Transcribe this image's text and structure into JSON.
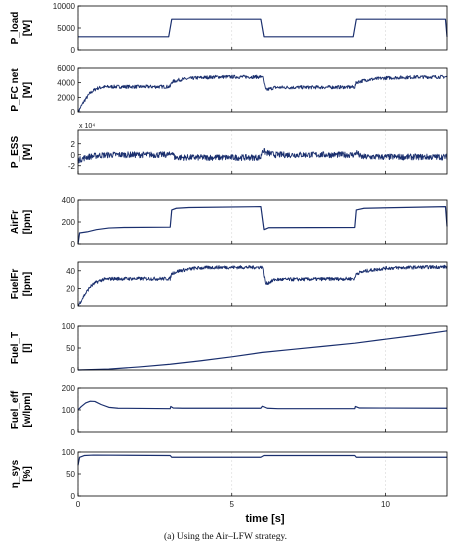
{
  "chart_data": {
    "type": "line",
    "caption": "(a) Using the Air–LFW strategy.",
    "xlabel": "time [s]",
    "xlim": [
      0,
      12
    ],
    "xticks": [
      0,
      5,
      10
    ],
    "line_color": "#1a2f6e",
    "panels": [
      {
        "ylabel": [
          "P_load",
          "[W]"
        ],
        "ylim": [
          0,
          10000
        ],
        "yticks": [
          0,
          5000,
          10000
        ],
        "exponent": "",
        "noise": 0,
        "points": [
          [
            0,
            3000
          ],
          [
            2.95,
            3000
          ],
          [
            3.05,
            7000
          ],
          [
            5.95,
            7000
          ],
          [
            6.05,
            3000
          ],
          [
            8.95,
            3000
          ],
          [
            9.05,
            7000
          ],
          [
            11.95,
            7000
          ],
          [
            12,
            3000
          ]
        ]
      },
      {
        "ylabel": [
          "P_FC net",
          "[W]"
        ],
        "ylim": [
          0,
          6000
        ],
        "yticks": [
          0,
          2000,
          4000,
          6000
        ],
        "exponent": "",
        "noise": 0.04,
        "points": [
          [
            0,
            0
          ],
          [
            0.2,
            1500
          ],
          [
            0.4,
            2600
          ],
          [
            0.6,
            3200
          ],
          [
            0.8,
            3400
          ],
          [
            1.1,
            3450
          ],
          [
            3.0,
            3450
          ],
          [
            3.05,
            4100
          ],
          [
            3.3,
            4400
          ],
          [
            3.8,
            4650
          ],
          [
            4.5,
            4800
          ],
          [
            5.95,
            4800
          ],
          [
            6.0,
            4950
          ],
          [
            6.1,
            3000
          ],
          [
            6.4,
            3350
          ],
          [
            9.0,
            3400
          ],
          [
            9.05,
            4050
          ],
          [
            9.4,
            4400
          ],
          [
            10.0,
            4650
          ],
          [
            11.0,
            4780
          ],
          [
            12,
            4800
          ]
        ]
      },
      {
        "ylabel": [
          "P_ESS",
          "[W]"
        ],
        "ylim": [
          -0.35,
          0.45
        ],
        "yticks": [
          -0.2,
          0,
          0.2
        ],
        "ytick_labels": [
          "-2",
          "0",
          "2"
        ],
        "exponent": "x 10⁴",
        "noise": 0.07,
        "points": [
          [
            0,
            -0.1
          ],
          [
            0.3,
            -0.04
          ],
          [
            0.7,
            -0.01
          ],
          [
            1.2,
            0.0
          ],
          [
            3.0,
            0.0
          ],
          [
            3.05,
            0.06
          ],
          [
            3.15,
            -0.05
          ],
          [
            3.5,
            -0.05
          ],
          [
            5.95,
            -0.05
          ],
          [
            6.0,
            0.09
          ],
          [
            6.1,
            0.04
          ],
          [
            6.4,
            0.0
          ],
          [
            9.0,
            0.0
          ],
          [
            9.05,
            0.05
          ],
          [
            9.2,
            -0.04
          ],
          [
            12,
            -0.04
          ]
        ]
      },
      {
        "ylabel": [
          "AirFr",
          "[lpm]"
        ],
        "ylim": [
          0,
          400
        ],
        "yticks": [
          0,
          200,
          400
        ],
        "exponent": "",
        "noise": 0,
        "points": [
          [
            0,
            0
          ],
          [
            0.05,
            100
          ],
          [
            0.3,
            110
          ],
          [
            0.6,
            130
          ],
          [
            1.0,
            145
          ],
          [
            1.5,
            150
          ],
          [
            3.0,
            153
          ],
          [
            3.05,
            310
          ],
          [
            3.2,
            325
          ],
          [
            3.6,
            332
          ],
          [
            5.95,
            340
          ],
          [
            6.05,
            130
          ],
          [
            6.2,
            148
          ],
          [
            9.0,
            150
          ],
          [
            9.05,
            310
          ],
          [
            9.3,
            325
          ],
          [
            11.95,
            340
          ],
          [
            12,
            160
          ]
        ]
      },
      {
        "ylabel": [
          "FuelFr",
          "[lpm]"
        ],
        "ylim": [
          0,
          50
        ],
        "yticks": [
          0,
          20,
          40
        ],
        "exponent": "",
        "noise": 0.04,
        "points": [
          [
            0,
            0
          ],
          [
            0.2,
            12
          ],
          [
            0.4,
            22
          ],
          [
            0.6,
            27
          ],
          [
            0.8,
            30
          ],
          [
            1.1,
            31
          ],
          [
            3.0,
            31
          ],
          [
            3.05,
            37
          ],
          [
            3.3,
            40
          ],
          [
            3.8,
            43
          ],
          [
            4.5,
            44
          ],
          [
            5.95,
            44
          ],
          [
            6.0,
            45
          ],
          [
            6.1,
            25
          ],
          [
            6.4,
            30
          ],
          [
            9.0,
            31
          ],
          [
            9.05,
            37
          ],
          [
            9.4,
            40
          ],
          [
            10.0,
            43
          ],
          [
            11.0,
            44
          ],
          [
            12,
            44.5
          ]
        ]
      },
      {
        "ylabel": [
          "Fuel_T",
          "[l]"
        ],
        "ylim": [
          0,
          100
        ],
        "yticks": [
          0,
          50,
          100
        ],
        "exponent": "",
        "noise": 0,
        "points": [
          [
            0,
            0
          ],
          [
            1,
            2
          ],
          [
            2,
            7
          ],
          [
            3,
            13
          ],
          [
            4,
            21
          ],
          [
            5,
            30
          ],
          [
            6,
            40
          ],
          [
            7,
            47
          ],
          [
            8,
            54
          ],
          [
            9,
            61
          ],
          [
            10,
            70
          ],
          [
            11,
            79
          ],
          [
            12,
            89
          ]
        ]
      },
      {
        "ylabel": [
          "Fuel_eff",
          "[w/lpm]"
        ],
        "ylim": [
          0,
          200
        ],
        "yticks": [
          0,
          100,
          200
        ],
        "exponent": "",
        "noise": 0,
        "points": [
          [
            0,
            100
          ],
          [
            0.1,
            115
          ],
          [
            0.25,
            132
          ],
          [
            0.4,
            140
          ],
          [
            0.55,
            139
          ],
          [
            0.75,
            125
          ],
          [
            1.0,
            112
          ],
          [
            1.3,
            108
          ],
          [
            3.0,
            106
          ],
          [
            3.02,
            116
          ],
          [
            3.1,
            109
          ],
          [
            3.4,
            108
          ],
          [
            5.95,
            108
          ],
          [
            6.0,
            117
          ],
          [
            6.15,
            108
          ],
          [
            6.5,
            106
          ],
          [
            9.0,
            106
          ],
          [
            9.02,
            116
          ],
          [
            9.15,
            109
          ],
          [
            12,
            108
          ]
        ]
      },
      {
        "ylabel": [
          "η_sys",
          "[%]"
        ],
        "ylim": [
          0,
          100
        ],
        "yticks": [
          0,
          50,
          100
        ],
        "exponent": "",
        "noise": 0,
        "points": [
          [
            0,
            70
          ],
          [
            0.05,
            88
          ],
          [
            0.2,
            92
          ],
          [
            0.5,
            93
          ],
          [
            3.0,
            92
          ],
          [
            3.05,
            88
          ],
          [
            5.95,
            88
          ],
          [
            6.05,
            92
          ],
          [
            9.0,
            92
          ],
          [
            9.05,
            88
          ],
          [
            12,
            88
          ]
        ]
      }
    ]
  }
}
